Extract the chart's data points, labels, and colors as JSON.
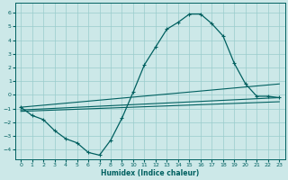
{
  "xlabel": "Humidex (Indice chaleur)",
  "xlim": [
    -0.5,
    23.5
  ],
  "ylim": [
    -4.7,
    6.7
  ],
  "yticks": [
    -4,
    -3,
    -2,
    -1,
    0,
    1,
    2,
    3,
    4,
    5,
    6
  ],
  "xticks": [
    0,
    1,
    2,
    3,
    4,
    5,
    6,
    7,
    8,
    9,
    10,
    11,
    12,
    13,
    14,
    15,
    16,
    17,
    18,
    19,
    20,
    21,
    22,
    23
  ],
  "bg_color": "#cce8e8",
  "line_color": "#006060",
  "grid_color": "#99cccc",
  "curve_x": [
    0,
    1,
    2,
    3,
    4,
    5,
    6,
    7,
    8,
    9,
    10,
    11,
    12,
    13,
    14,
    15,
    16,
    17,
    18,
    19,
    20,
    21,
    22,
    23
  ],
  "curve_y": [
    -0.9,
    -1.5,
    -1.8,
    -2.6,
    -3.2,
    -3.5,
    -4.2,
    -4.4,
    -3.3,
    -1.7,
    0.2,
    2.2,
    3.5,
    4.8,
    5.3,
    5.9,
    5.9,
    5.2,
    4.3,
    2.3,
    0.8,
    -0.1,
    -0.1,
    -0.2
  ],
  "line1_x": [
    0,
    23
  ],
  "line1_y": [
    -0.9,
    0.8
  ],
  "line2_x": [
    0,
    23
  ],
  "line2_y": [
    -1.1,
    -0.2
  ],
  "line3_x": [
    0,
    23
  ],
  "line3_y": [
    -1.2,
    -0.5
  ]
}
